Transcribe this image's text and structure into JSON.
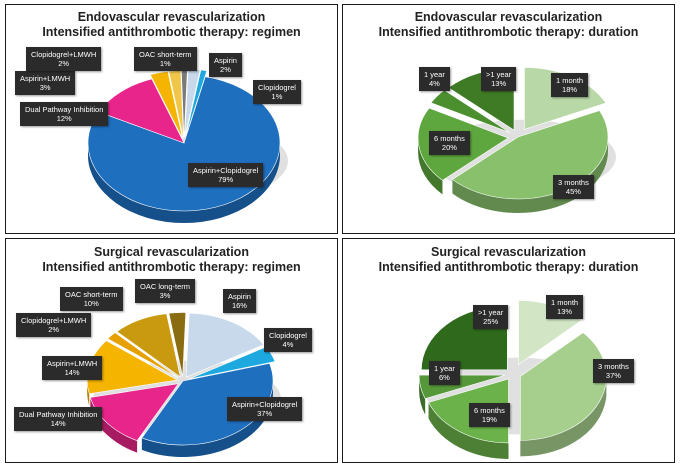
{
  "chart_data": [
    {
      "type": "pie",
      "title": "Endovascular revascularization",
      "subtitle": "Intensified antithrombotic therapy: regimen",
      "slices": [
        {
          "name": "Aspirin",
          "value": 2,
          "label": "2%",
          "color": "#c7d9ea"
        },
        {
          "name": "Clopidogrel",
          "value": 1,
          "label": "1%",
          "color": "#1ea8e0"
        },
        {
          "name": "Aspirin+Clopidogrel",
          "value": 79,
          "label": "79%",
          "color": "#1f6fbf"
        },
        {
          "name": "Dual Pathway Inhibition",
          "value": 12,
          "label": "12%",
          "color": "#e8258a"
        },
        {
          "name": "Aspirin+LMWH",
          "value": 3,
          "label": "3%",
          "color": "#f4b400"
        },
        {
          "name": "Clopidogrel+LMWH",
          "value": 2,
          "label": "2%",
          "color": "#f0c64a"
        },
        {
          "name": "OAC short-term",
          "value": 1,
          "label": "1%",
          "color": "#7a7a7a"
        }
      ]
    },
    {
      "type": "pie",
      "title": "Endovascular revascularization",
      "subtitle": "Intensified antithrombotic therapy: duration",
      "slices": [
        {
          "name": "1 month",
          "value": 18,
          "label": "18%",
          "color": "#b9d8a8"
        },
        {
          "name": "3 months",
          "value": 45,
          "label": "45%",
          "color": "#88c06c"
        },
        {
          "name": "6 months",
          "value": 20,
          "label": "20%",
          "color": "#5ea63e"
        },
        {
          "name": "1 year",
          "value": 4,
          "label": "4%",
          "color": "#4b8f2f"
        },
        {
          "name": ">1 year",
          "value": 13,
          "label": "13%",
          "color": "#3f7a25"
        }
      ]
    },
    {
      "type": "pie",
      "title": "Surgical revascularization",
      "subtitle": "Intensified antithrombotic therapy: regimen",
      "slices": [
        {
          "name": "Aspirin",
          "value": 16,
          "label": "16%",
          "color": "#c7d9ea"
        },
        {
          "name": "Clopidogrel",
          "value": 4,
          "label": "4%",
          "color": "#1ea8e0"
        },
        {
          "name": "Aspirin+Clopidogrel",
          "value": 37,
          "label": "37%",
          "color": "#1f6fbf"
        },
        {
          "name": "Dual Pathway Inhibition",
          "value": 14,
          "label": "14%",
          "color": "#e8258a"
        },
        {
          "name": "Aspirin+LMWH",
          "value": 14,
          "label": "14%",
          "color": "#f4b400"
        },
        {
          "name": "Clopidogrel+LMWH",
          "value": 2,
          "label": "2%",
          "color": "#e6a000"
        },
        {
          "name": "OAC short-term",
          "value": 10,
          "label": "10%",
          "color": "#c99a10"
        },
        {
          "name": "OAC long-term",
          "value": 3,
          "label": "3%",
          "color": "#8a6d10"
        }
      ]
    },
    {
      "type": "pie",
      "title": "Surgical revascularization",
      "subtitle": "Intensified antithrombotic therapy: duration",
      "slices": [
        {
          "name": "1 month",
          "value": 13,
          "label": "13%",
          "color": "#d2e6c6"
        },
        {
          "name": "3 months",
          "value": 37,
          "label": "37%",
          "color": "#a6cf8e"
        },
        {
          "name": "6 months",
          "value": 19,
          "label": "19%",
          "color": "#6bb24a"
        },
        {
          "name": "1 year",
          "value": 6,
          "label": "6%",
          "color": "#55983a"
        },
        {
          "name": ">1 year",
          "value": 25,
          "label": "25%",
          "color": "#2f6a1c"
        }
      ]
    }
  ]
}
